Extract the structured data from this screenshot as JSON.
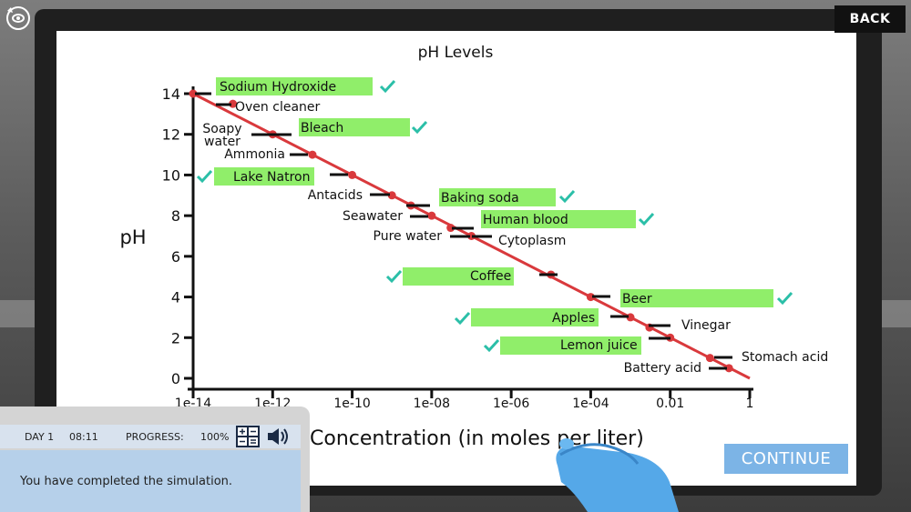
{
  "header": {
    "back_label": "BACK"
  },
  "footer": {
    "continue_label": "CONTINUE"
  },
  "status": {
    "day": "DAY 1",
    "time": "08:11",
    "progress_label": "PROGRESS:",
    "progress_value": "100%",
    "message": "You have completed the simulation."
  },
  "colors": {
    "line": "#d9393c",
    "match": "#90ee6a",
    "check": "#2bbfa8",
    "continue": "#7cb4e6"
  },
  "chart_data": {
    "type": "line",
    "title": "pH Levels",
    "xlabel": "Concentration (in moles per liter)",
    "ylabel": "pH",
    "x_scale": "log",
    "x_ticks": [
      "1e-14",
      "1e-12",
      "1e-10",
      "1e-08",
      "1e-06",
      "1e-04",
      "0.01",
      "1"
    ],
    "y_ticks": [
      "0",
      "2",
      "4",
      "6",
      "8",
      "10",
      "12",
      "14"
    ],
    "ylim": [
      0,
      14
    ],
    "series": [
      {
        "points": [
          [
            1e-14,
            14
          ],
          [
            1e-13,
            13.5
          ],
          [
            1e-12,
            12
          ],
          [
            1e-11,
            11
          ],
          [
            1e-10,
            10
          ],
          [
            1e-09,
            9
          ],
          [
            3e-09,
            8.5
          ],
          [
            1e-08,
            8
          ],
          [
            3e-08,
            7.4
          ],
          [
            1e-07,
            7
          ],
          [
            1e-05,
            5.1
          ],
          [
            0.0001,
            4
          ],
          [
            0.001,
            3
          ],
          [
            0.003,
            2.5
          ],
          [
            0.01,
            2
          ],
          [
            0.1,
            1
          ],
          [
            0.3,
            0.5
          ]
        ]
      }
    ],
    "labels": [
      {
        "text": "Sodium Hydroxide",
        "matched": true
      },
      {
        "text": "Oven cleaner",
        "matched": false
      },
      {
        "text": "Soapy water",
        "matched": false
      },
      {
        "text": "Bleach",
        "matched": true
      },
      {
        "text": "Ammonia",
        "matched": false
      },
      {
        "text": "Lake Natron",
        "matched": true
      },
      {
        "text": "Antacids",
        "matched": false
      },
      {
        "text": "Baking soda",
        "matched": true
      },
      {
        "text": "Seawater",
        "matched": false
      },
      {
        "text": "Human blood",
        "matched": true
      },
      {
        "text": "Pure water",
        "matched": false
      },
      {
        "text": "Cytoplasm",
        "matched": false
      },
      {
        "text": "Coffee",
        "matched": true
      },
      {
        "text": "Beer",
        "matched": true
      },
      {
        "text": "Apples",
        "matched": true
      },
      {
        "text": "Vinegar",
        "matched": false
      },
      {
        "text": "Lemon juice",
        "matched": true
      },
      {
        "text": "Stomach acid",
        "matched": false
      },
      {
        "text": "Battery acid",
        "matched": false
      }
    ]
  }
}
